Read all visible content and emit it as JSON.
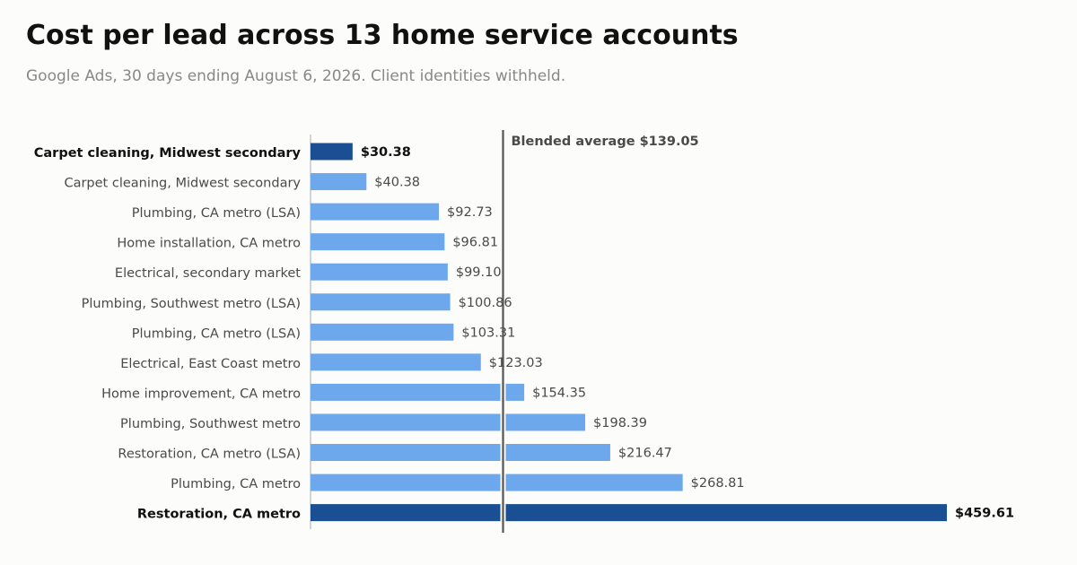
{
  "title": "Cost per lead across 13 home service accounts",
  "subtitle": "Google Ads, 30 days ending August 6, 2026. Client identities withheld.",
  "colors": {
    "bar": "#6ea8ec",
    "highlight": "#1b4f93",
    "label": "#4a4a4a",
    "label_highlight": "#111111",
    "reference_line": "#555555",
    "axis": "#bbbbbb"
  },
  "chart_data": {
    "type": "bar",
    "orientation": "horizontal",
    "value_prefix": "$",
    "categories": [
      "Carpet cleaning, Midwest secondary",
      "Carpet cleaning, Midwest secondary",
      "Plumbing, CA metro (LSA)",
      "Home installation, CA metro",
      "Electrical, secondary market",
      "Plumbing, Southwest metro (LSA)",
      "Plumbing, CA metro (LSA)",
      "Electrical, East Coast metro",
      "Home improvement, CA metro",
      "Plumbing, Southwest metro",
      "Restoration, CA metro (LSA)",
      "Plumbing, CA metro",
      "Restoration, CA metro"
    ],
    "values": [
      30.38,
      40.38,
      92.73,
      96.81,
      99.1,
      100.86,
      103.31,
      123.03,
      154.35,
      198.39,
      216.47,
      268.81,
      459.61
    ],
    "value_labels": [
      "$30.38",
      "$40.38",
      "$92.73",
      "$96.81",
      "$99.10",
      "$100.86",
      "$103.31",
      "$123.03",
      "$154.35",
      "$198.39",
      "$216.47",
      "$268.81",
      "$459.61"
    ],
    "highlighted": [
      0,
      12
    ],
    "reference_line": {
      "value": 139.05,
      "label": "Blended average $139.05"
    },
    "xlim": [
      0,
      459.61
    ],
    "grid": false,
    "legend": "none"
  }
}
